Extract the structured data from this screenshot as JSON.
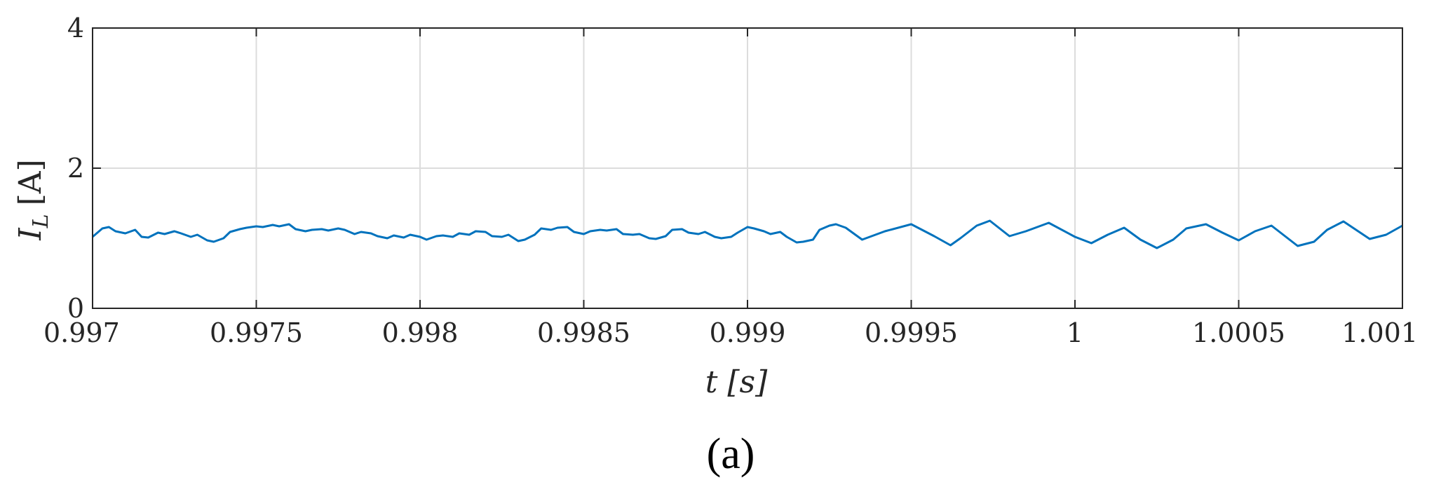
{
  "chart_data": {
    "type": "line",
    "xlabel": "t [s]",
    "ylabel": "I_L [A]",
    "ylabel_main": "I",
    "ylabel_sub": "L",
    "ylabel_unit": "[A]",
    "panel_label": "(a)",
    "xlim": [
      0.997,
      1.001
    ],
    "ylim": [
      0,
      4
    ],
    "grid": true,
    "x_ticks": [
      0.997,
      0.9975,
      0.998,
      0.9985,
      0.999,
      0.9995,
      1,
      1.0005,
      1.001
    ],
    "x_tick_labels": [
      "0.997",
      "0.9975",
      "0.998",
      "0.9985",
      "0.999",
      "0.9995",
      "1",
      "1.0005",
      "1.001"
    ],
    "y_ticks": [
      0,
      2,
      4
    ],
    "y_tick_labels": [
      "0",
      "2",
      "4"
    ],
    "colors": {
      "line": "#0072BD",
      "grid": "#dcdcdc",
      "axes": "#262626"
    },
    "series": [
      {
        "x": [
          0.997,
          0.99703,
          0.99705,
          0.99707,
          0.9971,
          0.99713,
          0.99715,
          0.99717,
          0.9972,
          0.99722,
          0.99725,
          0.99727,
          0.9973,
          0.99732,
          0.99735,
          0.99737,
          0.9974,
          0.99742,
          0.99745,
          0.99747,
          0.9975,
          0.99752,
          0.99755,
          0.99757,
          0.9976,
          0.99762,
          0.99765,
          0.99767,
          0.9977,
          0.99772,
          0.99775,
          0.99777,
          0.9978,
          0.99782,
          0.99785,
          0.99787,
          0.9979,
          0.99792,
          0.99795,
          0.99797,
          0.998,
          0.99802,
          0.99805,
          0.99807,
          0.9981,
          0.99812,
          0.99815,
          0.99817,
          0.9982,
          0.99822,
          0.99825,
          0.99827,
          0.9983,
          0.99832,
          0.99835,
          0.99837,
          0.9984,
          0.99842,
          0.99845,
          0.99847,
          0.9985,
          0.99852,
          0.99855,
          0.99857,
          0.9986,
          0.99862,
          0.99865,
          0.99867,
          0.9987,
          0.99872,
          0.99875,
          0.99877,
          0.9988,
          0.99882,
          0.99885,
          0.99887,
          0.9989,
          0.99892,
          0.99895,
          0.99897,
          0.999,
          0.99902,
          0.99905,
          0.99907,
          0.9991,
          0.99912,
          0.99915,
          0.99917,
          0.9992,
          0.99922,
          0.99925,
          0.99927,
          0.9993,
          0.99935,
          0.99942,
          0.9995,
          0.99957,
          0.99962,
          0.99965,
          0.9997,
          0.99974,
          0.9998,
          0.99985,
          0.99992,
          1.0,
          1.00005,
          1.0001,
          1.00015,
          1.0002,
          1.00025,
          1.0003,
          1.00034,
          1.0004,
          1.00045,
          1.0005,
          1.00055,
          1.0006,
          1.00068,
          1.00073,
          1.00077,
          1.00082,
          1.0009,
          1.00095,
          1.001
        ],
        "y": [
          1.02,
          1.14,
          1.16,
          1.1,
          1.07,
          1.12,
          1.02,
          1.01,
          1.08,
          1.06,
          1.1,
          1.07,
          1.02,
          1.05,
          0.97,
          0.95,
          1.0,
          1.09,
          1.13,
          1.15,
          1.17,
          1.16,
          1.19,
          1.17,
          1.2,
          1.13,
          1.1,
          1.12,
          1.13,
          1.11,
          1.14,
          1.12,
          1.06,
          1.09,
          1.07,
          1.03,
          1.0,
          1.04,
          1.01,
          1.05,
          1.02,
          0.98,
          1.03,
          1.04,
          1.02,
          1.07,
          1.05,
          1.1,
          1.09,
          1.03,
          1.02,
          1.05,
          0.96,
          0.98,
          1.05,
          1.14,
          1.12,
          1.15,
          1.16,
          1.09,
          1.06,
          1.1,
          1.12,
          1.11,
          1.13,
          1.06,
          1.05,
          1.06,
          1.0,
          0.99,
          1.03,
          1.12,
          1.13,
          1.08,
          1.06,
          1.09,
          1.02,
          1.0,
          1.02,
          1.08,
          1.16,
          1.14,
          1.1,
          1.06,
          1.09,
          1.02,
          0.94,
          0.95,
          0.98,
          1.12,
          1.18,
          1.2,
          1.15,
          0.98,
          1.1,
          1.2,
          1.03,
          0.9,
          1.0,
          1.18,
          1.25,
          1.03,
          1.1,
          1.22,
          1.02,
          0.93,
          1.05,
          1.15,
          0.98,
          0.86,
          0.98,
          1.14,
          1.2,
          1.08,
          0.97,
          1.1,
          1.18,
          0.89,
          0.95,
          1.12,
          1.24,
          0.99,
          1.05,
          1.18
        ]
      }
    ]
  }
}
